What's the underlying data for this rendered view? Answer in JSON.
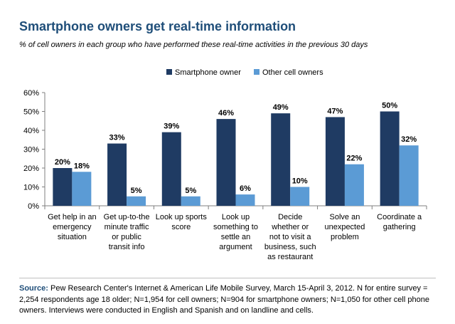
{
  "title": "Smartphone owners get real-time information",
  "subtitle": "% of cell owners in each group who have performed these real-time activities in the previous 30 days",
  "chart_data": {
    "type": "bar",
    "categories": [
      [
        "Get help in an",
        "emergency",
        "situation"
      ],
      [
        "Get up-to-the",
        "minute traffic",
        "or public",
        "transit info"
      ],
      [
        "Look up sports",
        "score"
      ],
      [
        "Look up",
        "something to",
        "settle an",
        "argument"
      ],
      [
        "Decide",
        "whether or",
        "not to visit a",
        "business, such",
        "as restaurant"
      ],
      [
        "Solve an",
        "unexpected",
        "problem"
      ],
      [
        "Coordinate a",
        "gathering"
      ]
    ],
    "series": [
      {
        "name": "Smartphone owner",
        "color": "#1f3b63",
        "values": [
          20,
          33,
          39,
          46,
          49,
          47,
          50
        ],
        "labels": [
          "20%",
          "33%",
          "39%",
          "46%",
          "49%",
          "47%",
          "50%"
        ]
      },
      {
        "name": "Other cell owners",
        "color": "#5b9bd5",
        "values": [
          18,
          5,
          5,
          6,
          10,
          22,
          32
        ],
        "labels": [
          "18%",
          "5%",
          "5%",
          "6%",
          "10%",
          "22%",
          "32%"
        ]
      }
    ],
    "y_ticks": [
      "0%",
      "10%",
      "20%",
      "30%",
      "40%",
      "50%",
      "60%"
    ],
    "ylim": [
      0,
      60
    ],
    "legend_position": "top-center"
  },
  "source": {
    "label": "Source:",
    "text": "Pew Research Center's Internet & American Life Mobile Survey, March 15-April 3, 2012. N for entire survey = 2,254 respondents age 18 older; N=1,954 for cell owners; N=904 for smartphone owners; N=1,050 for other cell phone owners. Interviews were conducted in English and Spanish and on landline and cells."
  }
}
